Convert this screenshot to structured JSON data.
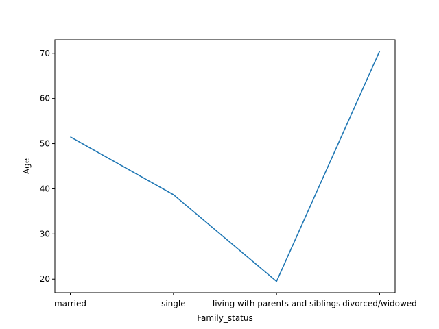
{
  "chart_data": {
    "type": "line",
    "categories": [
      "married",
      "single",
      "living with parents and siblings",
      "divorced/widowed"
    ],
    "series": [
      {
        "values": [
          51.5,
          38.7,
          19.5,
          70.5
        ],
        "color": "#1f77b4"
      }
    ],
    "title": "",
    "xlabel": "Family_status",
    "ylabel": "Age",
    "ylim": [
      17.0,
      73.0
    ],
    "yticks": [
      20,
      30,
      40,
      50,
      60,
      70
    ],
    "grid": false
  }
}
